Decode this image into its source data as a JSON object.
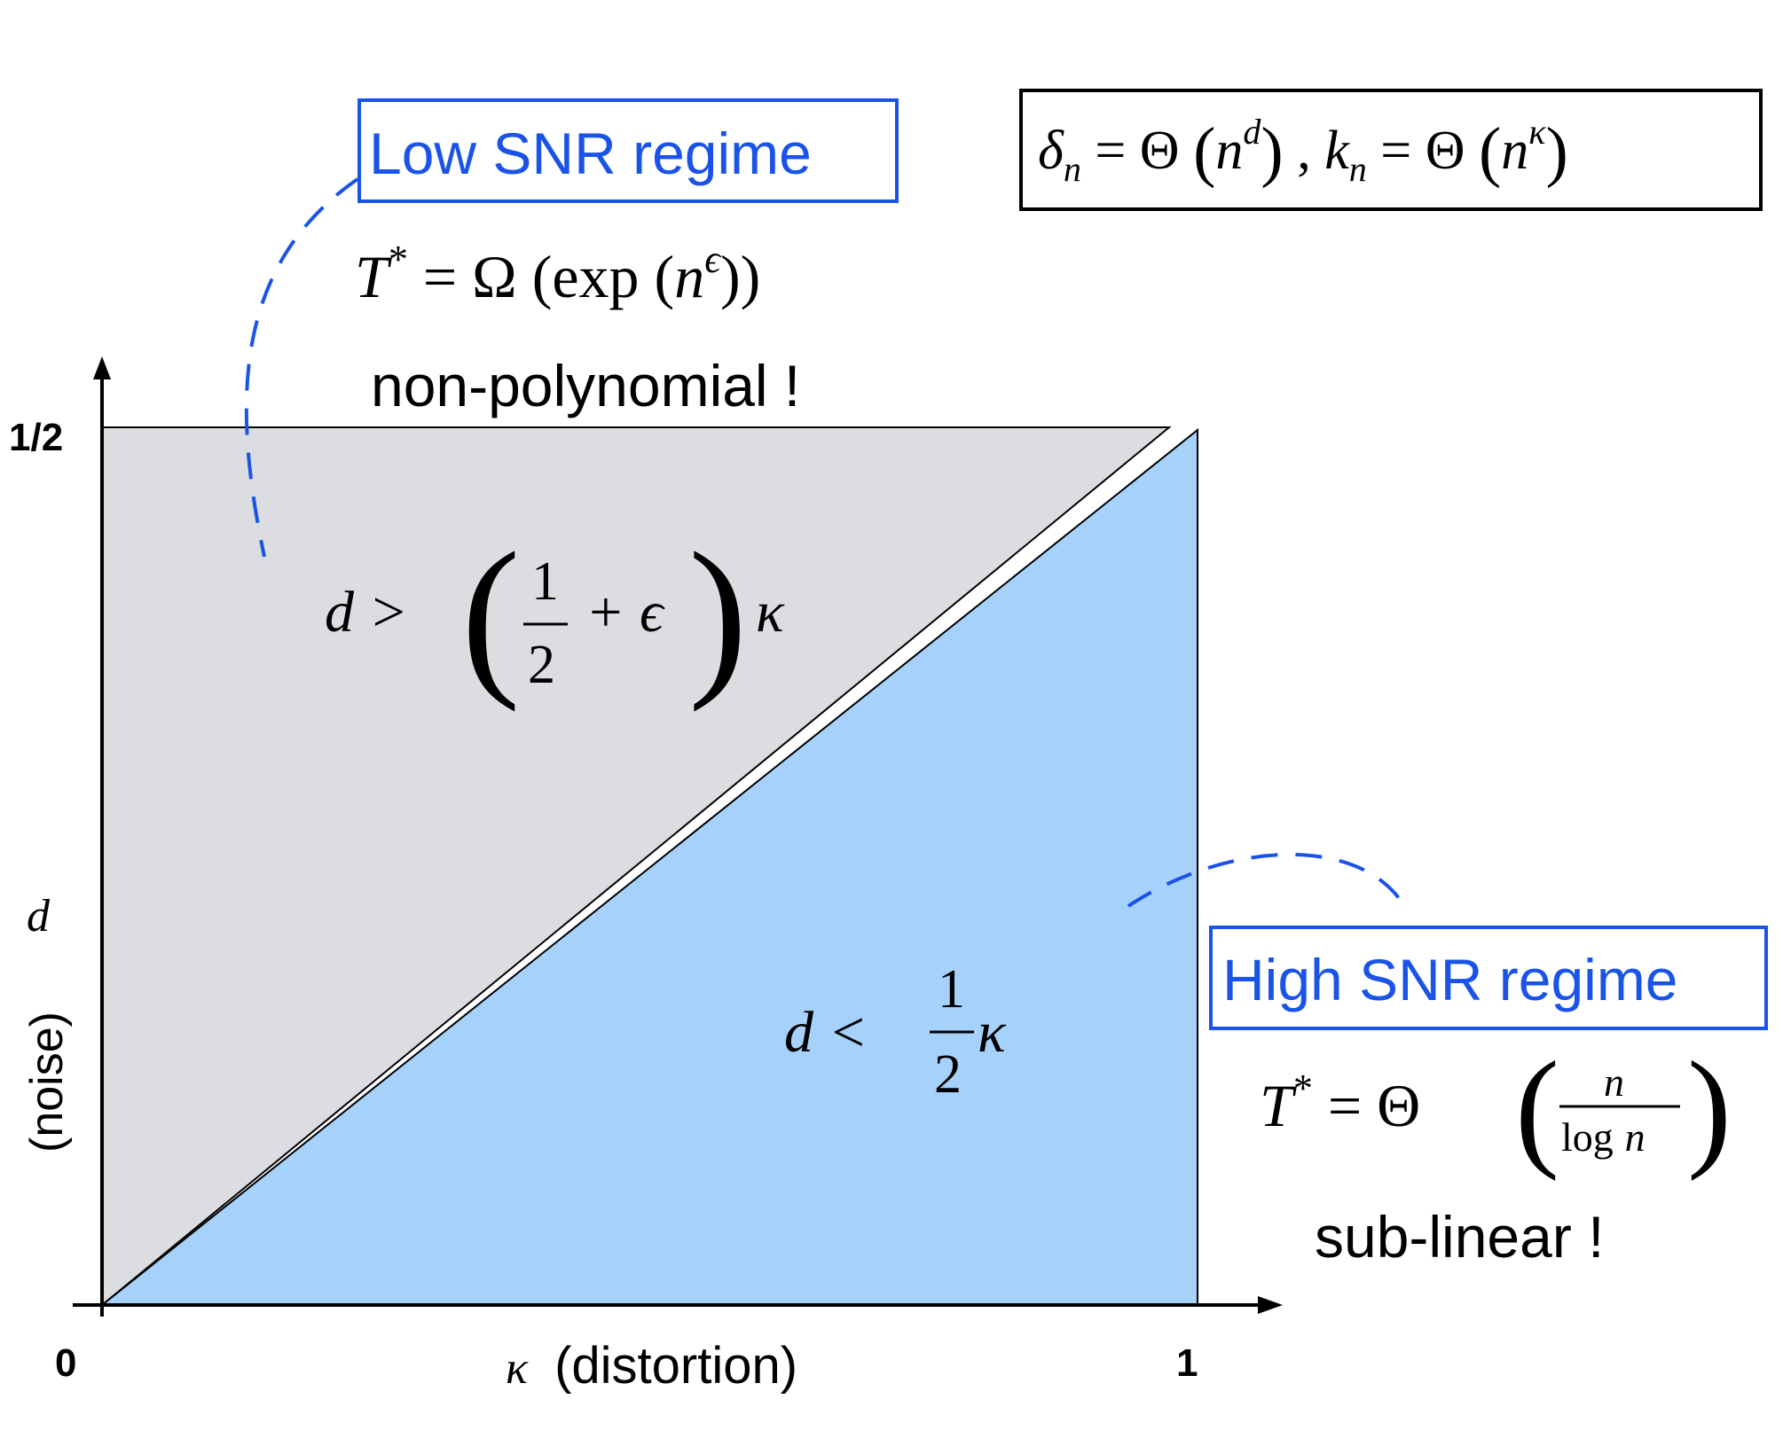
{
  "axes": {
    "y_tick_top": "1/2",
    "origin_label": "0",
    "x_tick_right": "1",
    "y_axis_symbol": "d",
    "y_axis_label": "(noise)",
    "x_axis_symbol": "κ",
    "x_axis_label": "(distortion)"
  },
  "scaling_box": {
    "delta": "δ",
    "sub_n": "n",
    "eq": " = Θ ",
    "n": "n",
    "sup_d": "d",
    "comma": " , ",
    "k": "k",
    "sup_kappa": "κ"
  },
  "low_snr": {
    "title": "Low SNR regime",
    "T": "T",
    "star": "*",
    "eq": " = Ω (",
    "exp": "exp",
    "open": " (",
    "n": "n",
    "sup": "ϵ",
    "close": "))",
    "note": "non-polynomial !",
    "condition": {
      "lhs": "d >",
      "num": "1",
      "den": "2",
      "plus": "+ ϵ",
      "rhs": "κ"
    }
  },
  "high_snr": {
    "title": "High SNR regime",
    "T": "T",
    "star": "*",
    "eq": " = Θ",
    "num": "n",
    "den_log": "log",
    "den_n": "n",
    "note": "sub-linear !",
    "condition": {
      "lhs": "d <",
      "num": "1",
      "den": "2",
      "rhs": "κ"
    }
  },
  "colors": {
    "low_region": "#dcdde0",
    "high_region": "#a6d1fa",
    "accent_blue": "#1a53e8",
    "ink": "#000000"
  }
}
